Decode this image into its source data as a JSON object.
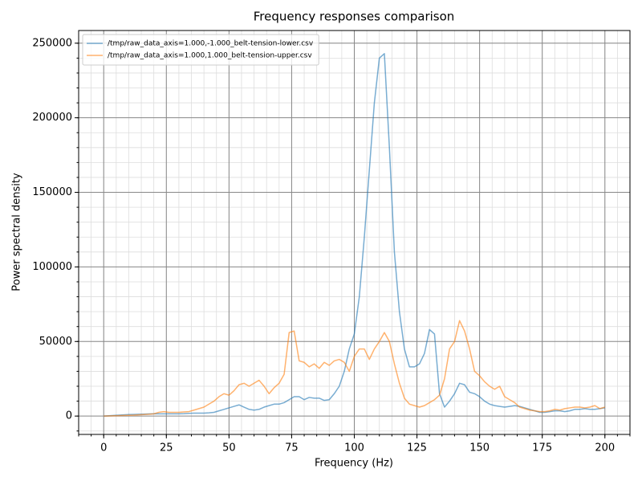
{
  "chart_data": {
    "type": "line",
    "title": "Frequency responses comparison",
    "xlabel": "Frequency (Hz)",
    "ylabel": "Power spectral density",
    "x": [
      0,
      2,
      4,
      6,
      8,
      10,
      12,
      14,
      16,
      18,
      20,
      22,
      24,
      26,
      28,
      30,
      32,
      34,
      36,
      38,
      40,
      42,
      44,
      46,
      48,
      50,
      52,
      54,
      56,
      58,
      60,
      62,
      64,
      66,
      68,
      70,
      72,
      74,
      76,
      78,
      80,
      82,
      84,
      86,
      88,
      90,
      92,
      94,
      96,
      98,
      100,
      102,
      104,
      106,
      108,
      110,
      112,
      114,
      116,
      118,
      120,
      122,
      124,
      126,
      128,
      130,
      132,
      134,
      136,
      138,
      140,
      142,
      144,
      146,
      148,
      150,
      152,
      154,
      156,
      158,
      160,
      162,
      164,
      166,
      168,
      170,
      172,
      174,
      176,
      178,
      180,
      182,
      184,
      186,
      188,
      190,
      192,
      194,
      196,
      198,
      200
    ],
    "series": [
      {
        "name": "/tmp/raw_data_axis=1.000,-1.000_belt-tension-lower.csv",
        "color": "#1f77b4",
        "values": [
          0,
          200,
          400,
          600,
          800,
          1000,
          1100,
          1200,
          1300,
          1400,
          1500,
          1500,
          1500,
          1500,
          1500,
          1500,
          1600,
          1800,
          2000,
          2000,
          2000,
          2200,
          2500,
          3500,
          4500,
          5500,
          6500,
          7500,
          6000,
          4500,
          4000,
          4500,
          6000,
          7000,
          8000,
          8000,
          9000,
          11000,
          13000,
          13000,
          11000,
          12500,
          12000,
          12000,
          10500,
          11000,
          15000,
          20000,
          30000,
          45000,
          55000,
          80000,
          120000,
          165000,
          210000,
          240000,
          243000,
          180000,
          110000,
          70000,
          45000,
          33000,
          33000,
          35000,
          42000,
          58000,
          55000,
          15000,
          6000,
          10000,
          15000,
          22000,
          21000,
          16000,
          15000,
          13000,
          10000,
          8000,
          7000,
          6500,
          6000,
          6500,
          7000,
          6500,
          5500,
          4500,
          3500,
          2500,
          2500,
          3000,
          3500,
          3500,
          3000,
          3500,
          4500,
          4500,
          5000,
          4500,
          4500,
          5000,
          5500
        ]
      },
      {
        "name": "/tmp/raw_data_axis=1.000,1.000_belt-tension-upper.csv",
        "color": "#ff7f0e",
        "values": [
          0,
          100,
          200,
          300,
          400,
          500,
          600,
          800,
          1000,
          1200,
          1500,
          2500,
          3000,
          2500,
          2500,
          2500,
          2800,
          3000,
          4000,
          5000,
          6000,
          8000,
          10000,
          13000,
          15000,
          14000,
          17000,
          21000,
          22000,
          20000,
          22000,
          24000,
          20000,
          15000,
          19000,
          22000,
          28000,
          56000,
          57000,
          37000,
          36000,
          33000,
          35000,
          32000,
          36000,
          34000,
          37000,
          38000,
          36000,
          30000,
          40000,
          45000,
          45000,
          38000,
          45000,
          50000,
          56000,
          50000,
          35000,
          22000,
          12000,
          8000,
          7000,
          6000,
          7000,
          9000,
          11000,
          14000,
          25000,
          45000,
          50000,
          64000,
          57000,
          45000,
          30000,
          27000,
          23000,
          20000,
          18000,
          20000,
          13000,
          11000,
          9000,
          6000,
          5000,
          4000,
          3500,
          3000,
          3000,
          3500,
          4500,
          4000,
          5000,
          5500,
          6000,
          6000,
          5500,
          6000,
          7000,
          5000,
          6000
        ]
      }
    ],
    "line_opacity": 0.6,
    "xlim": [
      -10,
      210
    ],
    "ylim": [
      -12300,
      258500
    ],
    "xticks": [
      0,
      25,
      50,
      75,
      100,
      125,
      150,
      175,
      200
    ],
    "yticks": [
      0,
      50000,
      100000,
      150000,
      200000,
      250000
    ],
    "xminorstep": 5,
    "yminorstep": 10000,
    "grid": true,
    "legend": "upper-left"
  }
}
